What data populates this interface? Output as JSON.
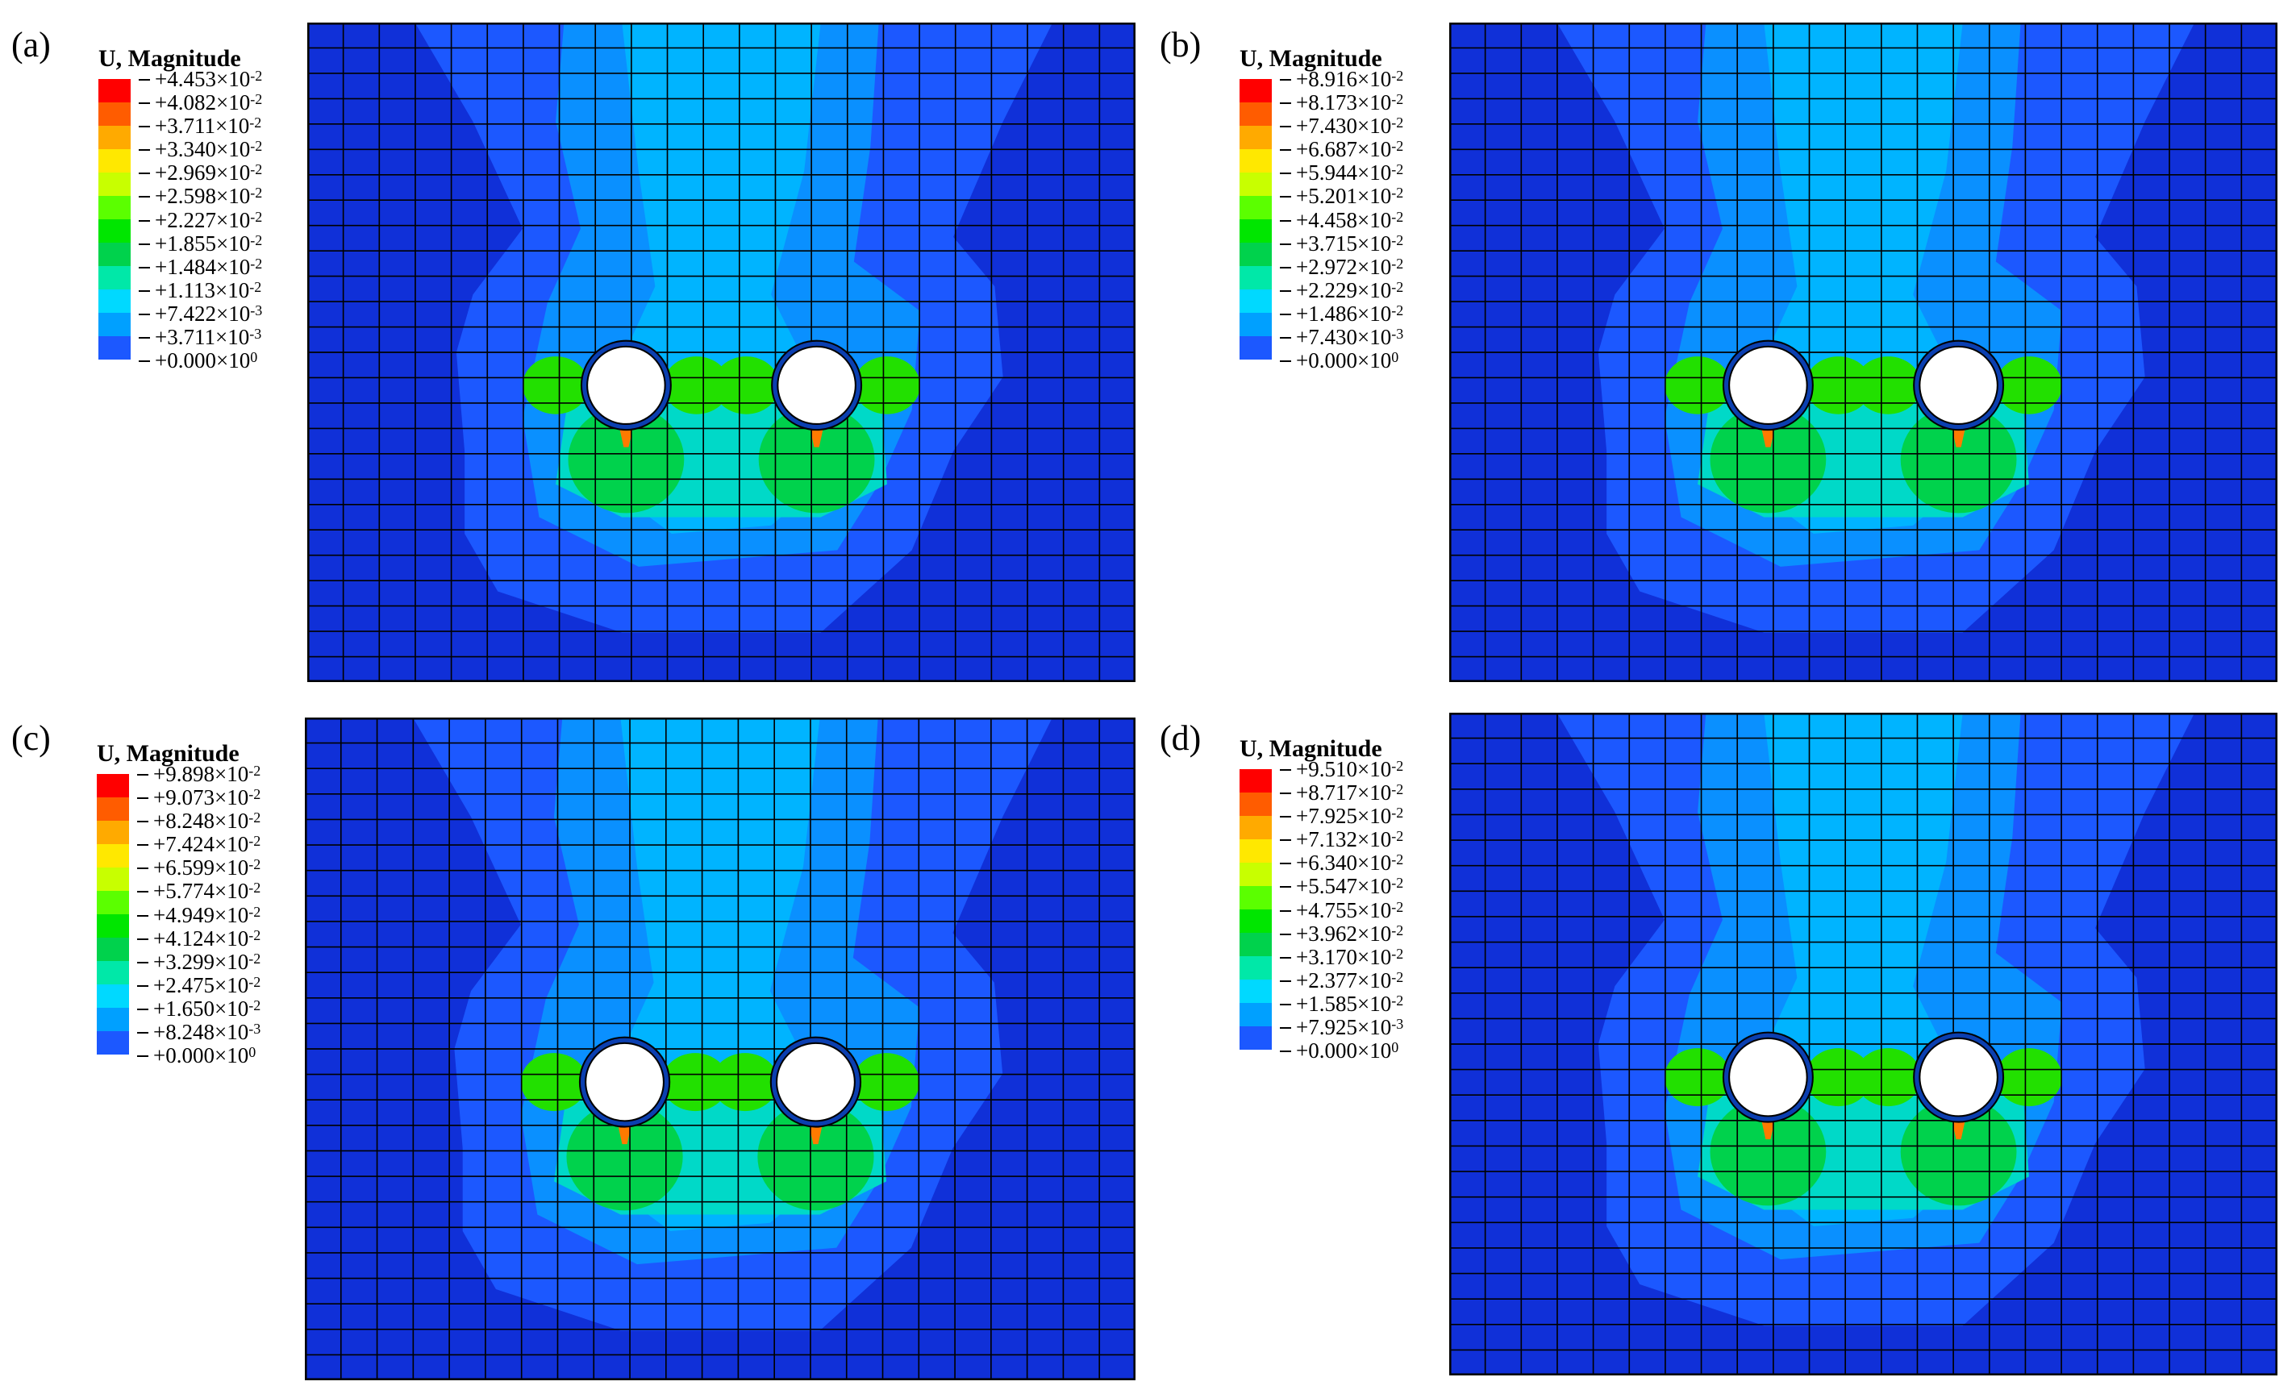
{
  "figure": {
    "legend_title": "U, Magnitude",
    "colors": [
      "#ff0000",
      "#ff5c00",
      "#ffaa00",
      "#ffe800",
      "#c8ff00",
      "#5bff00",
      "#00e600",
      "#00d24c",
      "#00e8a8",
      "#00d9ff",
      "#00a0ff",
      "#1c58ff",
      "#0010e8"
    ],
    "mesh_line_color": "#000000",
    "background_contour": "#1030d8",
    "panels": [
      {
        "letter": "(a)",
        "values": [
          "+4.453",
          "+4.082",
          "+3.711",
          "+3.340",
          "+2.969",
          "+2.598",
          "+2.227",
          "+1.855",
          "+1.484",
          "+1.113",
          "+7.422",
          "+3.711",
          "+0.000"
        ],
        "exponents": [
          "-2",
          "-2",
          "-2",
          "-2",
          "-2",
          "-2",
          "-2",
          "-2",
          "-2",
          "-2",
          "-3",
          "-3",
          "0"
        ]
      },
      {
        "letter": "(b)",
        "values": [
          "+8.916",
          "+8.173",
          "+7.430",
          "+6.687",
          "+5.944",
          "+5.201",
          "+4.458",
          "+3.715",
          "+2.972",
          "+2.229",
          "+1.486",
          "+7.430",
          "+0.000"
        ],
        "exponents": [
          "-2",
          "-2",
          "-2",
          "-2",
          "-2",
          "-2",
          "-2",
          "-2",
          "-2",
          "-2",
          "-2",
          "-3",
          "0"
        ]
      },
      {
        "letter": "(c)",
        "values": [
          "+9.898",
          "+9.073",
          "+8.248",
          "+7.424",
          "+6.599",
          "+5.774",
          "+4.949",
          "+4.124",
          "+3.299",
          "+2.475",
          "+1.650",
          "+8.248",
          "+0.000"
        ],
        "exponents": [
          "-2",
          "-2",
          "-2",
          "-2",
          "-2",
          "-2",
          "-2",
          "-2",
          "-2",
          "-2",
          "-2",
          "-3",
          "0"
        ]
      },
      {
        "letter": "(d)",
        "values": [
          "+9.510",
          "+8.717",
          "+7.925",
          "+7.132",
          "+6.340",
          "+5.547",
          "+4.755",
          "+3.962",
          "+3.170",
          "+2.377",
          "+1.585",
          "+7.925",
          "+0.000"
        ],
        "exponents": [
          "-2",
          "-2",
          "-2",
          "-2",
          "-2",
          "-2",
          "-2",
          "-2",
          "-2",
          "-2",
          "-2",
          "-3",
          "0"
        ]
      }
    ]
  }
}
